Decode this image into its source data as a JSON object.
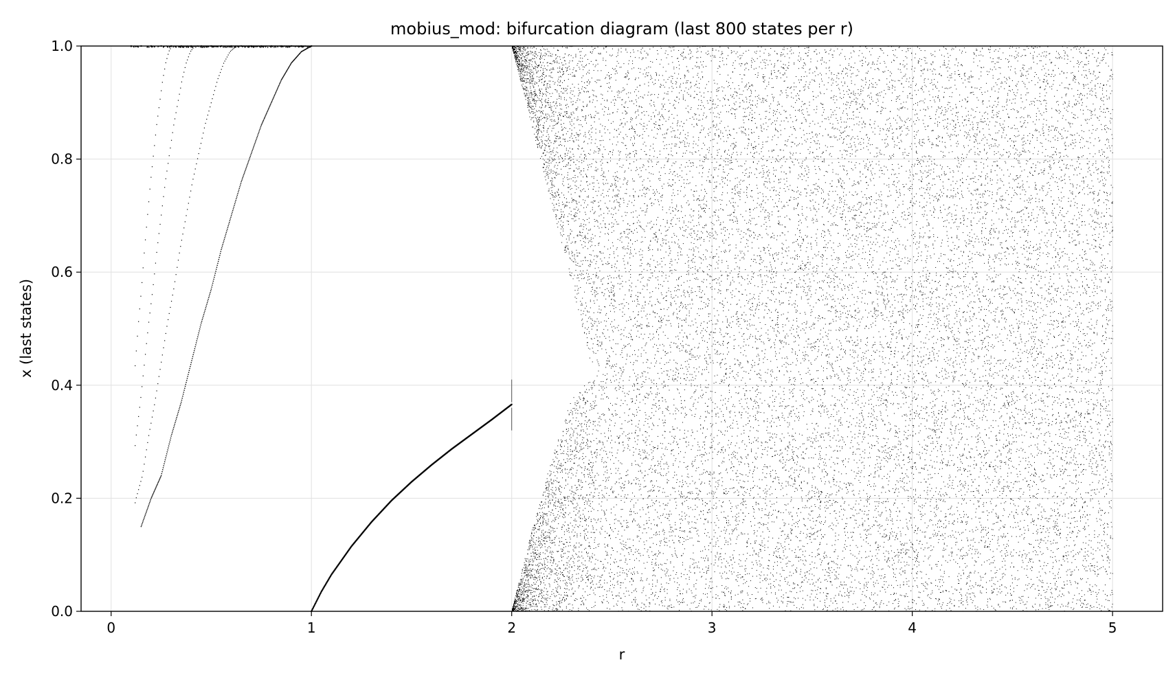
{
  "chart_data": {
    "type": "scatter",
    "title": "mobius_mod: bifurcation diagram (last 800 states per r)",
    "xlabel": "r",
    "ylabel": "x (last states)",
    "xlim": [
      -0.15,
      5.25
    ],
    "ylim": [
      0.0,
      1.0
    ],
    "x_ticks": [
      "0",
      "1",
      "2",
      "3",
      "4",
      "5"
    ],
    "y_ticks": [
      "0.0",
      "0.2",
      "0.4",
      "0.6",
      "0.8",
      "1.0"
    ],
    "grid": true,
    "legend": "none",
    "marker_color": "#000000",
    "r_range": [
      0.0,
      5.0
    ],
    "states_per_r": 800,
    "series": [
      {
        "x": [
          0.1,
          0.15,
          0.2,
          0.25,
          0.3,
          0.35,
          0.4,
          0.45,
          0.5,
          0.55,
          0.6,
          0.65,
          0.7,
          0.75,
          0.8,
          0.85,
          0.9,
          0.95,
          1.0
        ],
        "y": [
          1.0,
          1.0,
          1.0,
          1.0,
          1.0,
          1.0,
          1.0,
          1.0,
          1.0,
          1.0,
          1.0,
          1.0,
          1.0,
          1.0,
          1.0,
          1.0,
          1.0,
          1.0,
          1.0
        ]
      },
      {
        "x": [
          0.15,
          0.2,
          0.25,
          0.3,
          0.35,
          0.4,
          0.45,
          0.5,
          0.55,
          0.6,
          0.65,
          0.7,
          0.75,
          0.8,
          0.85,
          0.9,
          0.95,
          1.0
        ],
        "y": [
          0.15,
          0.2,
          0.24,
          0.31,
          0.37,
          0.44,
          0.51,
          0.57,
          0.64,
          0.7,
          0.76,
          0.81,
          0.86,
          0.9,
          0.94,
          0.97,
          0.99,
          1.0
        ]
      },
      {
        "x": [
          1.0,
          1.05,
          1.1,
          1.2,
          1.3,
          1.4,
          1.5,
          1.6,
          1.7,
          1.8,
          1.9,
          2.0
        ],
        "y": [
          0.0,
          0.035,
          0.065,
          0.115,
          0.158,
          0.196,
          0.229,
          0.259,
          0.287,
          0.313,
          0.339,
          0.366
        ]
      },
      {
        "x": [
          2.0,
          2.0,
          2.0,
          2.0
        ],
        "y": [
          0.32,
          0.36,
          0.37,
          0.41
        ]
      },
      {
        "x": [
          2.0,
          2.1,
          2.2,
          2.3,
          2.4,
          2.42,
          2.5,
          3.0,
          3.5,
          4.0,
          4.5,
          5.0
        ],
        "y_min": [
          0.0,
          0.14,
          0.27,
          0.38,
          0.41,
          0.41,
          0.0,
          0.0,
          0.0,
          0.0,
          0.0,
          0.0
        ],
        "y_max": [
          1.0,
          0.86,
          0.72,
          0.58,
          0.43,
          0.41,
          1.0,
          1.0,
          1.0,
          1.0,
          1.0,
          1.0
        ]
      }
    ]
  }
}
